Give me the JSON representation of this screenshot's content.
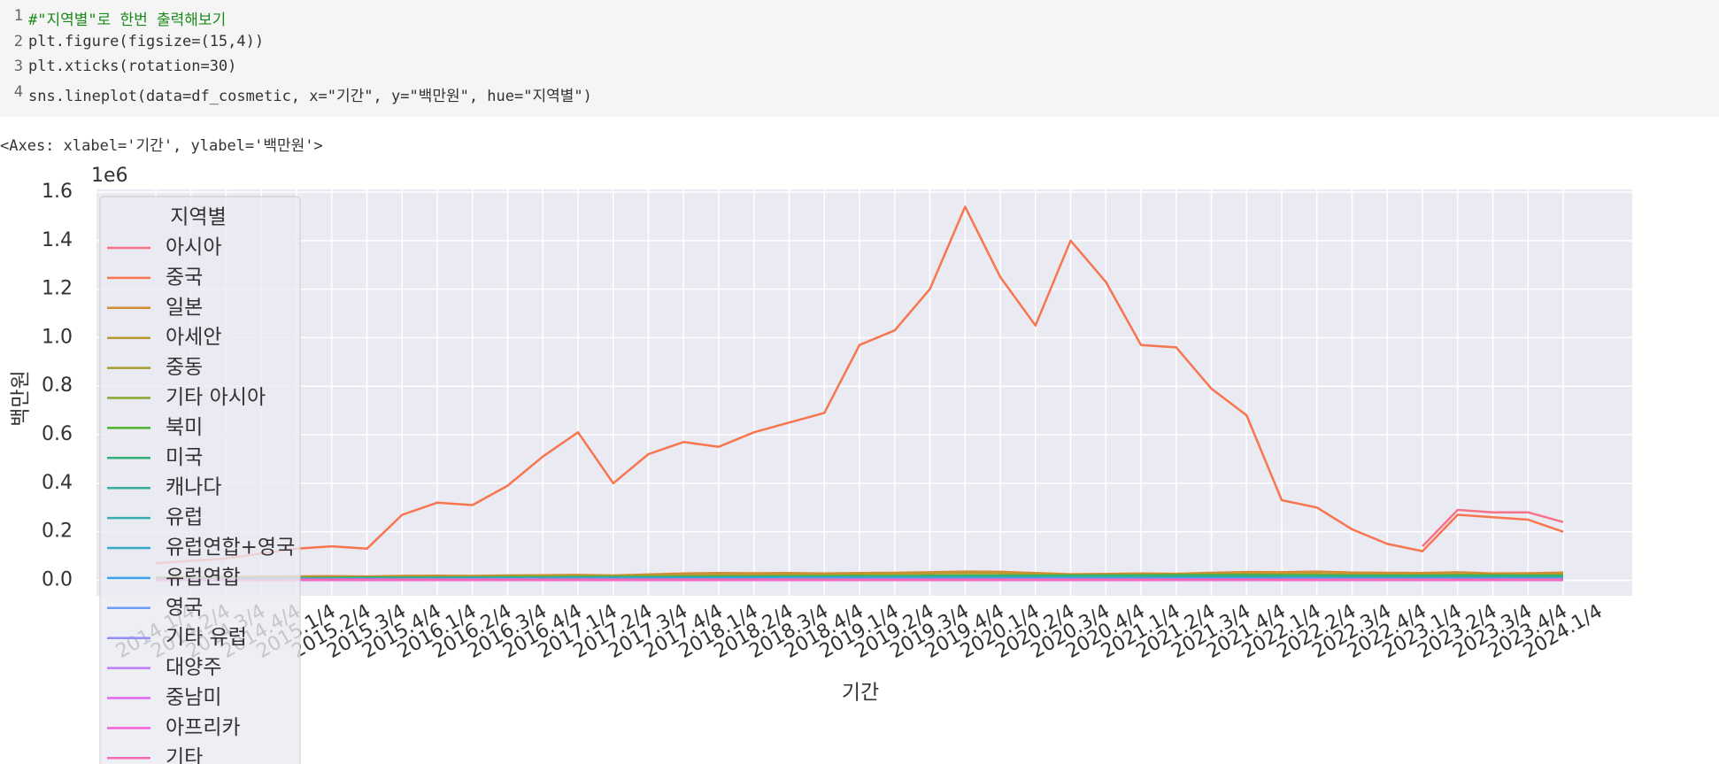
{
  "code_cell": {
    "line_numbers": [
      "1",
      "2",
      "3",
      "4"
    ],
    "lines": [
      "#\"지역별\"로 한번 출력해보기",
      "plt.figure(figsize=(15,4))",
      "plt.xticks(rotation=30)",
      "sns.lineplot(data=df_cosmetic, x=\"기간\", y=\"백만원\", hue=\"지역별\")"
    ]
  },
  "output_text": "<Axes: xlabel='기간', ylabel='백만원'>",
  "chart_data": {
    "type": "line",
    "x_label": "기간",
    "y_label": "백만원",
    "y_offset_label": "1e6",
    "legend_title": "지역별",
    "legend_position": "upper left",
    "grid": true,
    "ylim": [
      -0.064,
      1.611
    ],
    "yticks": [
      {
        "value": 0,
        "label": "0.0"
      },
      0.2,
      0.4,
      0.6,
      0.8,
      {
        "value": 1,
        "label": "1.0"
      },
      1.2,
      1.4,
      1.6
    ],
    "categories": [
      "2014.1/4",
      "2014.2/4",
      "2014.3/4",
      "2014.4/4",
      "2015.1/4",
      "2015.2/4",
      "2015.3/4",
      "2015.4/4",
      "2016.1/4",
      "2016.2/4",
      "2016.3/4",
      "2016.4/4",
      "2017.1/4",
      "2017.2/4",
      "2017.3/4",
      "2017.4/4",
      "2018.1/4",
      "2018.2/4",
      "2018.3/4",
      "2018.4/4",
      "2019.1/4",
      "2019.2/4",
      "2019.3/4",
      "2019.4/4",
      "2020.1/4",
      "2020.2/4",
      "2020.3/4",
      "2020.4/4",
      "2021.1/4",
      "2021.2/4",
      "2021.3/4",
      "2021.4/4",
      "2022.1/4",
      "2022.2/4",
      "2022.3/4",
      "2022.4/4",
      "2023.1/4",
      "2023.2/4",
      "2023.3/4",
      "2023.4/4",
      "2024.1/4"
    ],
    "series": [
      {
        "name": "아시아",
        "color": "#f77189",
        "values": [
          null,
          null,
          null,
          null,
          null,
          null,
          null,
          null,
          null,
          null,
          null,
          null,
          null,
          null,
          null,
          null,
          null,
          null,
          null,
          null,
          null,
          null,
          null,
          null,
          null,
          null,
          null,
          null,
          null,
          null,
          null,
          null,
          null,
          null,
          null,
          null,
          0.14,
          0.29,
          0.28,
          0.28,
          0.24
        ]
      },
      {
        "name": "중국",
        "color": "#f7754f",
        "values": [
          0.07,
          0.08,
          0.09,
          0.11,
          0.13,
          0.14,
          0.13,
          0.27,
          0.32,
          0.31,
          0.39,
          0.51,
          0.61,
          0.4,
          0.52,
          0.57,
          0.55,
          0.61,
          0.65,
          0.69,
          0.97,
          1.03,
          1.2,
          1.54,
          1.25,
          1.05,
          1.4,
          1.23,
          0.97,
          0.96,
          0.79,
          0.68,
          0.33,
          0.3,
          0.21,
          0.15,
          0.12,
          0.27,
          0.26,
          0.25,
          0.2
        ]
      },
      {
        "name": "일본",
        "color": "#d58b31",
        "values": [
          0.012,
          0.013,
          0.014,
          0.015,
          0.016,
          0.017,
          0.016,
          0.018,
          0.019,
          0.018,
          0.02,
          0.021,
          0.022,
          0.02,
          0.024,
          0.028,
          0.03,
          0.029,
          0.03,
          0.028,
          0.03,
          0.031,
          0.033,
          0.036,
          0.035,
          0.03,
          0.025,
          0.026,
          0.028,
          0.027,
          0.031,
          0.034,
          0.033,
          0.036,
          0.032,
          0.031,
          0.03,
          0.033,
          0.028,
          0.029,
          0.032
        ]
      },
      {
        "name": "아세안",
        "color": "#bb9832",
        "values": [
          0.008,
          0.009,
          0.01,
          0.011,
          0.012,
          0.013,
          0.013,
          0.015,
          0.016,
          0.016,
          0.018,
          0.019,
          0.02,
          0.019,
          0.021,
          0.023,
          0.024,
          0.023,
          0.025,
          0.024,
          0.026,
          0.027,
          0.028,
          0.03,
          0.029,
          0.024,
          0.02,
          0.021,
          0.022,
          0.022,
          0.024,
          0.026,
          0.025,
          0.026,
          0.024,
          0.023,
          0.022,
          0.024,
          0.021,
          0.022,
          0.024
        ]
      },
      {
        "name": "중동",
        "color": "#a49d31",
        "values": [
          0.002,
          0.002,
          0.003,
          0.003,
          0.003,
          0.003,
          0.004,
          0.004,
          0.004,
          0.004,
          0.005,
          0.005,
          0.005,
          0.005,
          0.005,
          0.006,
          0.006,
          0.006,
          0.006,
          0.006,
          0.006,
          0.006,
          0.007,
          0.007,
          0.007,
          0.006,
          0.006,
          0.006,
          0.006,
          0.006,
          0.006,
          0.007,
          0.007,
          0.007,
          0.007,
          0.007,
          0.006,
          0.006,
          0.006,
          0.006,
          0.006
        ]
      },
      {
        "name": "기타 아시아",
        "color": "#8aa632",
        "values": [
          0.004,
          0.004,
          0.005,
          0.005,
          0.005,
          0.006,
          0.006,
          0.006,
          0.007,
          0.007,
          0.007,
          0.008,
          0.008,
          0.008,
          0.008,
          0.009,
          0.009,
          0.009,
          0.009,
          0.01,
          0.01,
          0.01,
          0.01,
          0.01,
          0.009,
          0.009,
          0.009,
          0.009,
          0.009,
          0.009,
          0.01,
          0.01,
          0.01,
          0.01,
          0.01,
          0.01,
          0.009,
          0.009,
          0.009,
          0.009,
          0.009
        ]
      },
      {
        "name": "북미",
        "color": "#50b131",
        "values": [
          0.008,
          0.008,
          0.009,
          0.009,
          0.01,
          0.01,
          0.011,
          0.011,
          0.012,
          0.012,
          0.013,
          0.013,
          0.014,
          0.014,
          0.015,
          0.015,
          0.016,
          0.016,
          0.017,
          0.017,
          0.018,
          0.018,
          0.019,
          0.02,
          0.02,
          0.02,
          0.021,
          0.021,
          0.021,
          0.022,
          0.022,
          0.022,
          0.021,
          0.021,
          0.02,
          0.02,
          0.02,
          0.021,
          0.021,
          0.02,
          0.02
        ]
      },
      {
        "name": "미국",
        "color": "#33b07a",
        "values": [
          0.007,
          0.007,
          0.008,
          0.008,
          0.009,
          0.009,
          0.01,
          0.01,
          0.011,
          0.011,
          0.012,
          0.012,
          0.013,
          0.013,
          0.013,
          0.014,
          0.014,
          0.015,
          0.015,
          0.015,
          0.016,
          0.016,
          0.017,
          0.017,
          0.018,
          0.018,
          0.018,
          0.019,
          0.019,
          0.019,
          0.019,
          0.019,
          0.018,
          0.018,
          0.018,
          0.017,
          0.018,
          0.018,
          0.018,
          0.018,
          0.017
        ]
      },
      {
        "name": "캐나다",
        "color": "#35ad9b",
        "values": [
          0.001,
          0.001,
          0.001,
          0.001,
          0.001,
          0.001,
          0.001,
          0.001,
          0.001,
          0.001,
          0.001,
          0.001,
          0.001,
          0.001,
          0.001,
          0.001,
          0.001,
          0.001,
          0.001,
          0.001,
          0.002,
          0.002,
          0.002,
          0.002,
          0.002,
          0.002,
          0.002,
          0.002,
          0.002,
          0.002,
          0.002,
          0.002,
          0.002,
          0.002,
          0.002,
          0.002,
          0.002,
          0.002,
          0.002,
          0.002,
          0.002
        ]
      },
      {
        "name": "유럽",
        "color": "#36abb0",
        "values": [
          0.005,
          0.005,
          0.006,
          0.006,
          0.006,
          0.007,
          0.007,
          0.007,
          0.008,
          0.008,
          0.008,
          0.009,
          0.009,
          0.009,
          0.01,
          0.01,
          0.01,
          0.011,
          0.011,
          0.011,
          0.012,
          0.012,
          0.012,
          0.012,
          0.011,
          0.011,
          0.011,
          0.011,
          0.011,
          0.011,
          0.011,
          0.011,
          0.011,
          0.011,
          0.01,
          0.01,
          0.01,
          0.01,
          0.01,
          0.01,
          0.01
        ]
      },
      {
        "name": "유럽연합+영국",
        "color": "#38a9c5",
        "values": [
          0.004,
          0.004,
          0.005,
          0.005,
          0.005,
          0.006,
          0.006,
          0.006,
          0.007,
          0.007,
          0.007,
          0.007,
          0.008,
          0.008,
          0.008,
          0.008,
          0.009,
          0.009,
          0.009,
          0.009,
          0.01,
          0.01,
          0.01,
          0.01,
          0.009,
          0.009,
          0.009,
          0.009,
          0.009,
          0.009,
          0.009,
          0.009,
          0.009,
          0.009,
          0.009,
          0.009,
          0.008,
          0.008,
          0.008,
          0.008,
          0.008
        ]
      },
      {
        "name": "유럽연합",
        "color": "#3ba3ec",
        "values": [
          0.003,
          0.003,
          0.004,
          0.004,
          0.004,
          0.005,
          0.005,
          0.005,
          0.005,
          0.006,
          0.006,
          0.006,
          0.006,
          0.007,
          0.007,
          0.007,
          0.007,
          0.007,
          0.008,
          0.008,
          0.008,
          0.008,
          0.008,
          0.008,
          0.008,
          0.008,
          0.008,
          0.008,
          0.008,
          0.008,
          0.008,
          0.008,
          0.008,
          0.008,
          0.007,
          0.007,
          0.007,
          0.007,
          0.007,
          0.007,
          0.007
        ]
      },
      {
        "name": "영국",
        "color": "#6e9bf4",
        "values": [
          0.001,
          0.001,
          0.001,
          0.001,
          0.001,
          0.001,
          0.001,
          0.001,
          0.001,
          0.001,
          0.001,
          0.001,
          0.001,
          0.001,
          0.001,
          0.001,
          0.001,
          0.001,
          0.001,
          0.001,
          0.002,
          0.002,
          0.002,
          0.002,
          0.002,
          0.002,
          0.002,
          0.002,
          0.002,
          0.002,
          0.002,
          0.002,
          0.002,
          0.002,
          0.002,
          0.002,
          0.002,
          0.002,
          0.002,
          0.002,
          0.002
        ]
      },
      {
        "name": "기타 유럽",
        "color": "#958ff4",
        "values": [
          0.001,
          0.001,
          0.001,
          0.001,
          0.001,
          0.001,
          0.001,
          0.001,
          0.001,
          0.001,
          0.001,
          0.001,
          0.001,
          0.001,
          0.001,
          0.001,
          0.001,
          0.001,
          0.001,
          0.001,
          0.001,
          0.001,
          0.001,
          0.001,
          0.001,
          0.001,
          0.001,
          0.001,
          0.001,
          0.001,
          0.001,
          0.001,
          0.001,
          0.001,
          0.001,
          0.001,
          0.001,
          0.001,
          0.001,
          0.001,
          0.001
        ]
      },
      {
        "name": "대양주",
        "color": "#c07cf4",
        "values": [
          0.002,
          0.002,
          0.002,
          0.002,
          0.002,
          0.002,
          0.002,
          0.002,
          0.002,
          0.002,
          0.002,
          0.002,
          0.002,
          0.002,
          0.002,
          0.002,
          0.002,
          0.002,
          0.002,
          0.002,
          0.003,
          0.003,
          0.003,
          0.003,
          0.003,
          0.003,
          0.003,
          0.003,
          0.003,
          0.003,
          0.003,
          0.003,
          0.003,
          0.003,
          0.003,
          0.003,
          0.003,
          0.003,
          0.003,
          0.003,
          0.003
        ]
      },
      {
        "name": "중남미",
        "color": "#e565f4",
        "values": [
          0.001,
          0.001,
          0.001,
          0.001,
          0.001,
          0.001,
          0.001,
          0.001,
          0.001,
          0.001,
          0.001,
          0.001,
          0.001,
          0.001,
          0.001,
          0.001,
          0.001,
          0.001,
          0.001,
          0.001,
          0.001,
          0.001,
          0.001,
          0.001,
          0.001,
          0.001,
          0.001,
          0.001,
          0.001,
          0.001,
          0.001,
          0.001,
          0.001,
          0.001,
          0.001,
          0.001,
          0.001,
          0.001,
          0.001,
          0.001,
          0.001
        ]
      },
      {
        "name": "아프리카",
        "color": "#f45fdc",
        "values": [
          0.0005,
          0.0005,
          0.0005,
          0.0005,
          0.0005,
          0.0005,
          0.0005,
          0.0005,
          0.0005,
          0.0005,
          0.0005,
          0.0005,
          0.0005,
          0.0005,
          0.0005,
          0.0005,
          0.0005,
          0.0005,
          0.0005,
          0.0005,
          0.0005,
          0.0005,
          0.0005,
          0.0005,
          0.0005,
          0.0005,
          0.0005,
          0.0005,
          0.0005,
          0.0005,
          0.0005,
          0.0005,
          0.0005,
          0.0005,
          0.0005,
          0.0005,
          0.0005,
          0.0005,
          0.0005,
          0.0005,
          0.0005
        ]
      },
      {
        "name": "기타",
        "color": "#f569b7",
        "values": [
          0.003,
          0.003,
          0.003,
          0.003,
          0.003,
          0.003,
          0.003,
          0.003,
          0.003,
          0.003,
          0.003,
          0.003,
          0.003,
          0.003,
          0.003,
          0.003,
          0.003,
          0.003,
          0.003,
          0.003,
          0.003,
          0.003,
          0.003,
          0.003,
          0.003,
          0.003,
          0.003,
          0.003,
          0.003,
          0.003,
          0.003,
          0.003,
          0.003,
          0.003,
          0.003,
          0.003,
          0.003,
          0.003,
          0.003,
          0.003,
          0.003
        ]
      }
    ]
  }
}
